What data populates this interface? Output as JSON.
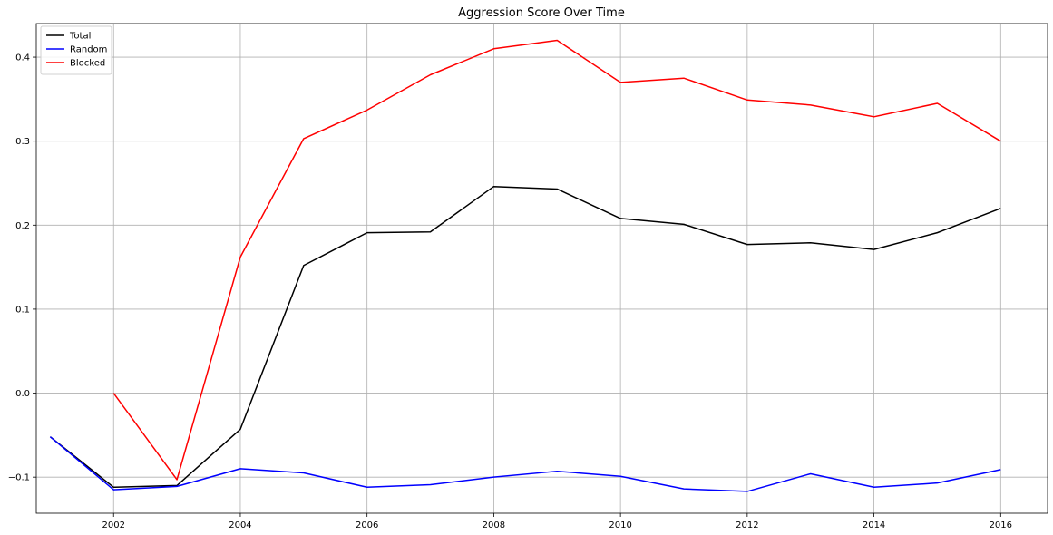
{
  "chart_data": {
    "type": "line",
    "title": "Aggression Score Over Time",
    "xlabel": "",
    "ylabel": "",
    "xlim": [
      2000.78,
      2016.74
    ],
    "ylim": [
      -0.143,
      0.44
    ],
    "x_ticks": [
      2002,
      2004,
      2006,
      2008,
      2010,
      2012,
      2014,
      2016
    ],
    "x_tick_labels": [
      "2002",
      "2004",
      "2006",
      "2008",
      "2010",
      "2012",
      "2014",
      "2016"
    ],
    "y_ticks": [
      -0.1,
      0.0,
      0.1,
      0.2,
      0.3,
      0.4
    ],
    "y_tick_labels": [
      "−0.1",
      "0.0",
      "0.1",
      "0.2",
      "0.3",
      "0.4"
    ],
    "grid": true,
    "legend_position": "top-left",
    "series": [
      {
        "name": "Total",
        "color": "#000000",
        "x": [
          2001,
          2002,
          2003,
          2004,
          2005,
          2006,
          2007,
          2008,
          2009,
          2010,
          2011,
          2012,
          2013,
          2014,
          2015,
          2016
        ],
        "y": [
          -0.052,
          -0.112,
          -0.11,
          -0.043,
          0.152,
          0.191,
          0.192,
          0.246,
          0.243,
          0.208,
          0.201,
          0.177,
          0.179,
          0.171,
          0.191,
          0.22
        ]
      },
      {
        "name": "Random",
        "color": "#0000ff",
        "x": [
          2001,
          2002,
          2003,
          2004,
          2005,
          2006,
          2007,
          2008,
          2009,
          2010,
          2011,
          2012,
          2013,
          2014,
          2015,
          2016
        ],
        "y": [
          -0.052,
          -0.115,
          -0.111,
          -0.09,
          -0.095,
          -0.112,
          -0.109,
          -0.1,
          -0.093,
          -0.099,
          -0.114,
          -0.117,
          -0.096,
          -0.112,
          -0.107,
          -0.091
        ]
      },
      {
        "name": "Blocked",
        "color": "#ff0000",
        "x": [
          2002,
          2003,
          2004,
          2005,
          2006,
          2007,
          2008,
          2009,
          2010,
          2011,
          2012,
          2013,
          2014,
          2015,
          2016
        ],
        "y": [
          0.0,
          -0.103,
          0.162,
          0.303,
          0.337,
          0.379,
          0.41,
          0.42,
          0.37,
          0.375,
          0.349,
          0.343,
          0.329,
          0.345,
          0.3
        ]
      }
    ]
  }
}
